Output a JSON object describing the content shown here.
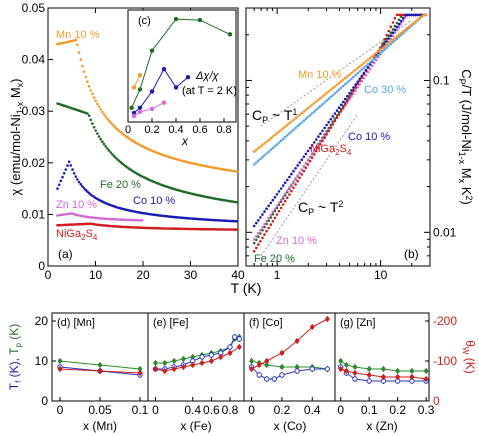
{
  "colors": {
    "Mn": "#f39a2c",
    "Fe": "#1f6b26",
    "Co": "#1a1ab5",
    "Zn": "#d36ad6",
    "NiGa2S4": "#d01c1c",
    "Co30": "#5aa6e8",
    "green_pts": "#2e8b2e",
    "blue_pts": "#2838c8",
    "red_pts": "#cc1f1f"
  },
  "chart_data": [
    {
      "id": "a",
      "type": "scatter",
      "panel_label": "(a)",
      "xlabel": "T (K)",
      "ylabel": "χ (emu/mol-Ni1-xMx)",
      "xlim": [
        0,
        40
      ],
      "ylim": [
        0,
        0.05
      ],
      "xticks": [
        0,
        10,
        20,
        30,
        40
      ],
      "yticks": [
        0,
        0.01,
        0.02,
        0.03,
        0.04,
        0.05
      ],
      "ytick_labels": [
        "0",
        "0.01",
        "0.02",
        "0.03",
        "0.04",
        "0.05"
      ],
      "series": [
        {
          "name": "Mn 10 %",
          "color_key": "Mn",
          "peak_T": 6.0,
          "peak_val": 0.0438,
          "start_val": 0.043,
          "tail_val": 0.0148,
          "tmax": 40
        },
        {
          "name": "Fe 20 %",
          "color_key": "Fe",
          "peak_T": 8.5,
          "peak_val": 0.0295,
          "start_val": 0.0315,
          "tail_val": 0.0088,
          "tmax": 40
        },
        {
          "name": "Co 10 %",
          "color_key": "Co",
          "peak_T": 4.5,
          "peak_val": 0.0203,
          "start_val": 0.015,
          "tail_val": 0.0075,
          "tmax": 40
        },
        {
          "name": "Zn 10 %",
          "color_key": "Zn",
          "peak_T": 5.0,
          "peak_val": 0.0102,
          "start_val": 0.0098,
          "tail_val": 0.0085,
          "tmax": 20
        },
        {
          "name": "NiGa2S4",
          "color_key": "NiGa2S4",
          "peak_T": 9.0,
          "peak_val": 0.0082,
          "start_val": 0.0079,
          "tail_val": 0.0068,
          "tmax": 40
        }
      ]
    },
    {
      "id": "c",
      "type": "line",
      "panel_label": "(c)",
      "xlabel": "x",
      "ylabel": "Δχ/χ",
      "note": "(at T = 2 K)",
      "xlim": [
        0,
        0.9
      ],
      "xticks": [
        0,
        0.2,
        0.4,
        0.6,
        0.8
      ],
      "series": [
        {
          "name": "Fe",
          "color_key": "Fe",
          "x": [
            0.03,
            0.1,
            0.2,
            0.4,
            0.6,
            0.85
          ],
          "y": [
            0.1,
            0.28,
            0.66,
            0.97,
            0.96,
            0.82
          ]
        },
        {
          "name": "Co",
          "color_key": "Co",
          "x": [
            0.05,
            0.1,
            0.2,
            0.3,
            0.4,
            0.5
          ],
          "y": [
            0.05,
            0.1,
            0.26,
            0.48,
            0.3,
            0.4
          ]
        },
        {
          "name": "Mn",
          "color_key": "Mn",
          "x": [
            0.05,
            0.1
          ],
          "y": [
            0.3,
            0.42
          ]
        },
        {
          "name": "Zn",
          "color_key": "Zn",
          "x": [
            0.05,
            0.1,
            0.2,
            0.3
          ],
          "y": [
            0.02,
            0.06,
            0.09,
            0.15
          ]
        }
      ]
    },
    {
      "id": "b",
      "type": "scatter",
      "panel_label": "(b)",
      "xlabel": "T (K)",
      "ylabel": "CP/T (J/mol-Ni1-xMxK2)",
      "x_scale": "log",
      "y_scale": "log",
      "xlim": [
        0.5,
        30
      ],
      "ylim": [
        0.006,
        0.3
      ],
      "xtick_labels": [
        "1",
        "10"
      ],
      "ytick_labels": [
        "0.01",
        "0.1"
      ],
      "annotations": [
        "CP ~ T1",
        "CP ~ T2"
      ],
      "series": [
        {
          "name": "Mn 10 %",
          "color_key": "Mn"
        },
        {
          "name": "Co 30 %",
          "color_key": "Co30"
        },
        {
          "name": "Co 10 %",
          "color_key": "Co"
        },
        {
          "name": "NiGa2S4",
          "color_key": "NiGa2S4"
        },
        {
          "name": "Zn 10 %",
          "color_key": "Zn"
        },
        {
          "name": "Fe 20 %",
          "color_key": "Fe"
        }
      ]
    },
    {
      "id": "d",
      "type": "line",
      "panel_label": "(d) [Mn]",
      "xlabel": "x (Mn)",
      "xlim": [
        -0.01,
        0.11
      ],
      "xticks": [
        0,
        0.05,
        0.1
      ],
      "xtick_labels": [
        "0",
        "0.05",
        "0.1"
      ],
      "series": [
        {
          "name": "Tp",
          "color_key": "green_pts",
          "x": [
            0,
            0.05,
            0.1
          ],
          "y": [
            10,
            9,
            8
          ]
        },
        {
          "name": "Tf",
          "color_key": "blue_pts",
          "x": [
            0,
            0.05,
            0.1
          ],
          "y": [
            8.5,
            7.5,
            6.5
          ]
        },
        {
          "name": "θW",
          "color_key": "red_pts",
          "x": [
            0,
            0.05,
            0.1
          ],
          "y": [
            8,
            7.5,
            7
          ]
        }
      ]
    },
    {
      "id": "e",
      "type": "line",
      "panel_label": "(e) [Fe]",
      "xlabel": "x (Fe)",
      "xlim": [
        -0.08,
        0.95
      ],
      "xticks": [
        0,
        0.4,
        0.6,
        0.8
      ],
      "xtick_labels": [
        "0",
        "0.4",
        "0.6",
        "0.8"
      ],
      "series": [
        {
          "name": "Tp",
          "color_key": "green_pts",
          "x": [
            0,
            0.1,
            0.2,
            0.3,
            0.4,
            0.5,
            0.6,
            0.7,
            0.8,
            0.85,
            0.9
          ],
          "y": [
            9.5,
            9.5,
            10,
            10.5,
            11,
            11.5,
            12,
            12.5,
            13.5,
            15.5,
            16
          ]
        },
        {
          "name": "Tf",
          "color_key": "blue_pts",
          "x": [
            0,
            0.1,
            0.2,
            0.3,
            0.4,
            0.5,
            0.6,
            0.7,
            0.8,
            0.85,
            0.9
          ],
          "y": [
            8,
            8,
            8.5,
            9,
            10,
            11,
            11.5,
            12,
            13.5,
            16,
            15.5
          ]
        },
        {
          "name": "θW",
          "color_key": "red_pts",
          "x": [
            0,
            0.1,
            0.2,
            0.3,
            0.4,
            0.5,
            0.6,
            0.7,
            0.8,
            0.9
          ],
          "y": [
            8,
            7.5,
            8,
            8.5,
            9,
            9.5,
            10,
            11,
            12,
            13.5
          ]
        }
      ]
    },
    {
      "id": "f",
      "type": "line",
      "panel_label": "(f) [Co]",
      "xlabel": "x (Co)",
      "xlim": [
        -0.05,
        0.55
      ],
      "xticks": [
        0,
        0.2,
        0.4
      ],
      "xtick_labels": [
        "0",
        "0.2",
        "0.4"
      ],
      "series": [
        {
          "name": "Tp",
          "color_key": "green_pts",
          "x": [
            0,
            0.05,
            0.1,
            0.2,
            0.3,
            0.4,
            0.5
          ],
          "y": [
            10,
            9.5,
            9,
            8.5,
            8.5,
            8.5,
            8
          ]
        },
        {
          "name": "Tf",
          "color_key": "blue_pts",
          "x": [
            0,
            0.05,
            0.1,
            0.15,
            0.2,
            0.3,
            0.4,
            0.5
          ],
          "y": [
            8.5,
            6.5,
            5.5,
            5.5,
            6.5,
            7.5,
            8,
            8
          ]
        },
        {
          "name": "θW",
          "color_key": "red_pts",
          "x": [
            0,
            0.05,
            0.1,
            0.2,
            0.3,
            0.4,
            0.5
          ],
          "y": [
            8,
            9,
            10,
            12,
            15,
            18.5,
            20.5
          ]
        }
      ]
    },
    {
      "id": "g",
      "type": "line",
      "panel_label": "(g) [Zn]",
      "xlabel": "x (Zn)",
      "xlim": [
        -0.02,
        0.31
      ],
      "xticks": [
        0,
        0.1,
        0.2,
        0.3
      ],
      "xtick_labels": [
        "0",
        "0.1",
        "0.2",
        "0.3"
      ],
      "series": [
        {
          "name": "Tp",
          "color_key": "green_pts",
          "x": [
            0,
            0.02,
            0.05,
            0.1,
            0.15,
            0.2,
            0.25,
            0.3
          ],
          "y": [
            10,
            9,
            8.5,
            8,
            8,
            7.5,
            7.5,
            7.5
          ]
        },
        {
          "name": "Tf",
          "color_key": "blue_pts",
          "x": [
            0,
            0.02,
            0.05,
            0.1,
            0.15,
            0.2,
            0.25,
            0.3
          ],
          "y": [
            8.5,
            7,
            5.5,
            5,
            5,
            5,
            5,
            5
          ]
        },
        {
          "name": "θW",
          "color_key": "red_pts",
          "x": [
            0,
            0.02,
            0.05,
            0.1,
            0.15,
            0.2,
            0.25,
            0.3
          ],
          "y": [
            8,
            7.5,
            7,
            6.5,
            6,
            6,
            6,
            5.5
          ]
        }
      ]
    }
  ],
  "bottom_axes": {
    "left_label": "Tf (K), Tp (K)",
    "left_ticks": [
      "0",
      "10",
      "20"
    ],
    "left_lim": [
      0,
      22
    ],
    "right_label": "θW (K)",
    "right_ticks": [
      "0",
      "-100",
      "-200"
    ]
  }
}
